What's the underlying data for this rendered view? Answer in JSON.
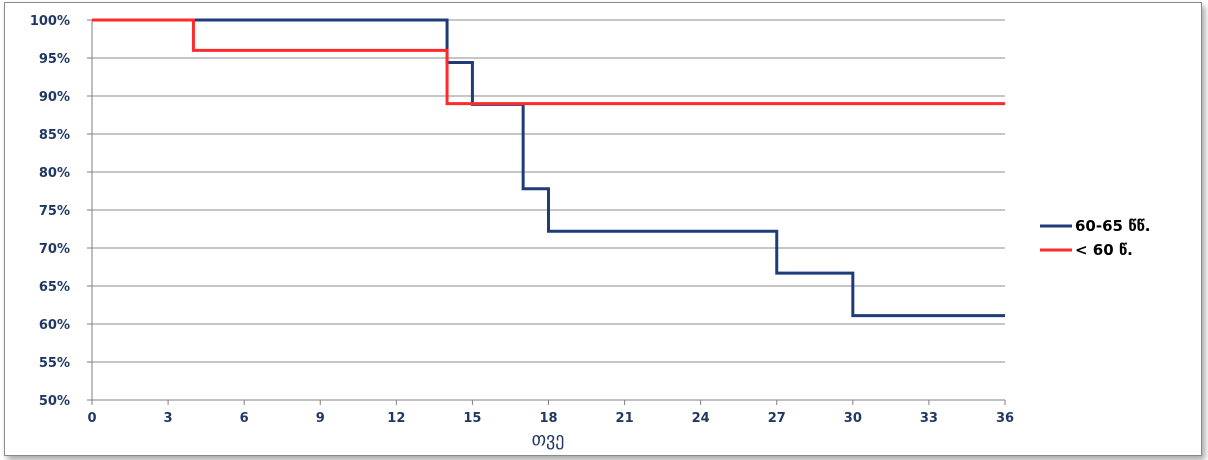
{
  "chart_data": {
    "type": "line",
    "step": true,
    "title": "",
    "xlabel": "თვე",
    "ylabel": "",
    "xlim": [
      0,
      36
    ],
    "ylim": [
      50,
      100
    ],
    "x_ticks": [
      0,
      3,
      6,
      9,
      12,
      15,
      18,
      21,
      24,
      27,
      30,
      33,
      36
    ],
    "x_tick_labels": [
      "0",
      "3",
      "6",
      "9",
      "12",
      "15",
      "18",
      "21",
      "24",
      "27",
      "30",
      "33",
      "36"
    ],
    "y_ticks": [
      50,
      55,
      60,
      65,
      70,
      75,
      80,
      85,
      90,
      95,
      100
    ],
    "y_tick_labels": [
      "50%",
      "55%",
      "60%",
      "65%",
      "70%",
      "75%",
      "80%",
      "85%",
      "90%",
      "95%",
      "100%"
    ],
    "grid": "horizontal",
    "legend_position": "right",
    "series": [
      {
        "name": "60-65 წწ.",
        "color": "#1f3c7a",
        "x": [
          0,
          14,
          15,
          17,
          18,
          27,
          30,
          36
        ],
        "y": [
          100,
          94.4,
          88.9,
          77.8,
          72.2,
          66.7,
          61.1,
          61.1
        ]
      },
      {
        "name": "< 60 წ.",
        "color": "#ff2a2a",
        "x": [
          0,
          4,
          14,
          36
        ],
        "y": [
          100,
          96,
          89,
          89
        ]
      }
    ]
  }
}
